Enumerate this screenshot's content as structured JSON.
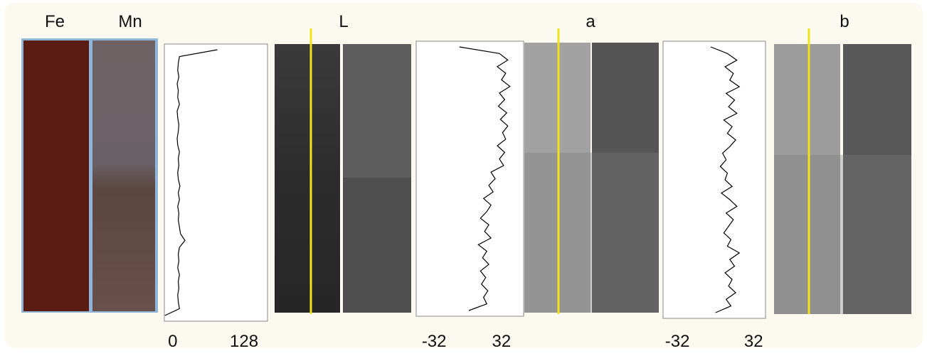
{
  "panel_labels": [
    "Fe",
    "Mn",
    "L",
    "a",
    "b"
  ],
  "chart_data": [
    {
      "type": "line",
      "color": "#000000",
      "xlim": [
        -15,
        170
      ],
      "xticks": [
        0,
        128
      ],
      "values": [
        80,
        12,
        10,
        9,
        11,
        8,
        10,
        9,
        12,
        8,
        9,
        11,
        10,
        8,
        9,
        12,
        10,
        11,
        9,
        10,
        13,
        10,
        12,
        9,
        11,
        10,
        12,
        14,
        22,
        12,
        10,
        11,
        9,
        12,
        10,
        11,
        9,
        10,
        12,
        -14
      ]
    },
    {
      "type": "line",
      "color": "#000000",
      "xlim": [
        -49,
        53
      ],
      "xticks": [
        -32,
        32
      ],
      "values": [
        -8,
        30,
        38,
        28,
        36,
        32,
        40,
        30,
        35,
        29,
        37,
        31,
        38,
        33,
        36,
        28,
        35,
        30,
        34,
        22,
        26,
        20,
        24,
        15,
        22,
        18,
        12,
        20,
        16,
        22,
        10,
        18,
        14,
        20,
        12,
        17,
        13,
        19,
        15,
        18,
        1
      ]
    },
    {
      "type": "line",
      "color": "#000000",
      "xlim": [
        -44,
        42
      ],
      "xticks": [
        -32,
        32
      ],
      "values": [
        -4,
        10,
        18,
        8,
        15,
        12,
        20,
        9,
        16,
        11,
        18,
        7,
        14,
        10,
        17,
        12,
        6,
        9,
        4,
        10,
        8,
        14,
        5,
        12,
        18,
        9,
        15,
        11,
        7,
        13,
        10,
        20,
        12,
        16,
        8,
        14,
        11,
        17,
        9,
        13,
        0
      ]
    }
  ]
}
